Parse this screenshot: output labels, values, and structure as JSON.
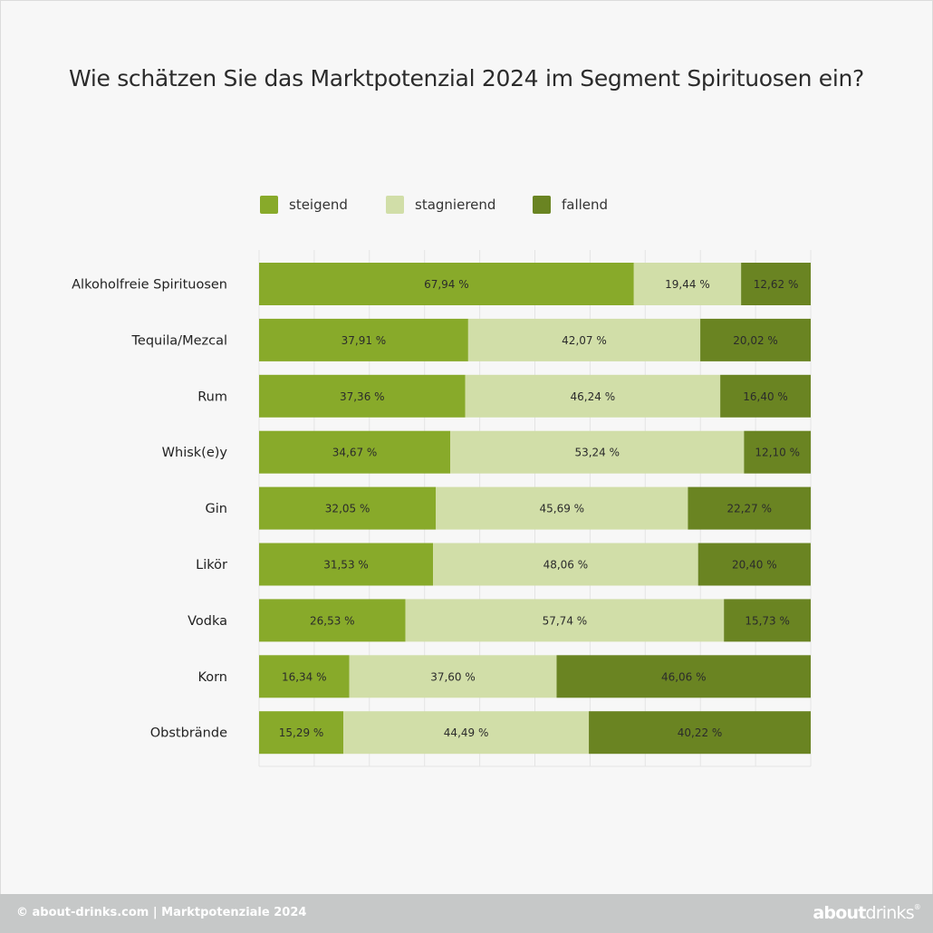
{
  "chart_data": {
    "type": "bar",
    "orientation": "horizontal",
    "stacked": true,
    "title": "Wie schätzen Sie das Marktpotenzial 2024 im Segment Spirituosen ein?",
    "categories": [
      "Alkoholfreie Spirituosen",
      "Tequila/Mezcal",
      "Rum",
      "Whisk(e)y",
      "Gin",
      "Likör",
      "Vodka",
      "Korn",
      "Obstbrände"
    ],
    "series": [
      {
        "name": "steigend",
        "color": "#88aa2a",
        "values": [
          67.94,
          37.91,
          37.36,
          34.67,
          32.05,
          31.53,
          26.53,
          16.34,
          15.29
        ],
        "labels": [
          "67,94 %",
          "37,91 %",
          "37,36 %",
          "34,67 %",
          "32,05 %",
          "31,53 %",
          "26,53 %",
          "16,34 %",
          "15,29 %"
        ]
      },
      {
        "name": "stagnierend",
        "color": "#d1dea8",
        "values": [
          19.44,
          42.07,
          46.24,
          53.24,
          45.69,
          48.06,
          57.74,
          37.6,
          44.49
        ],
        "labels": [
          "19,44 %",
          "42,07 %",
          "46,24 %",
          "53,24 %",
          "45,69 %",
          "48,06 %",
          "57,74 %",
          "37,60 %",
          "44,49 %"
        ]
      },
      {
        "name": "fallend",
        "color": "#6a8422",
        "values": [
          12.62,
          20.02,
          16.4,
          12.1,
          22.27,
          20.4,
          15.73,
          46.06,
          40.22
        ],
        "labels": [
          "12,62 %",
          "20,02 %",
          "16,40 %",
          "12,10 %",
          "22,27 %",
          "20,40 %",
          "15,73 %",
          "46,06 %",
          "40,22 %"
        ]
      }
    ],
    "xlim": [
      0,
      100
    ],
    "grid": true,
    "legend_position": "top"
  },
  "footer": {
    "text": "© about-drinks.com  |  Marktpotenziale 2024",
    "logo_bold": "about",
    "logo_regular": "drinks",
    "logo_mark": "®"
  }
}
